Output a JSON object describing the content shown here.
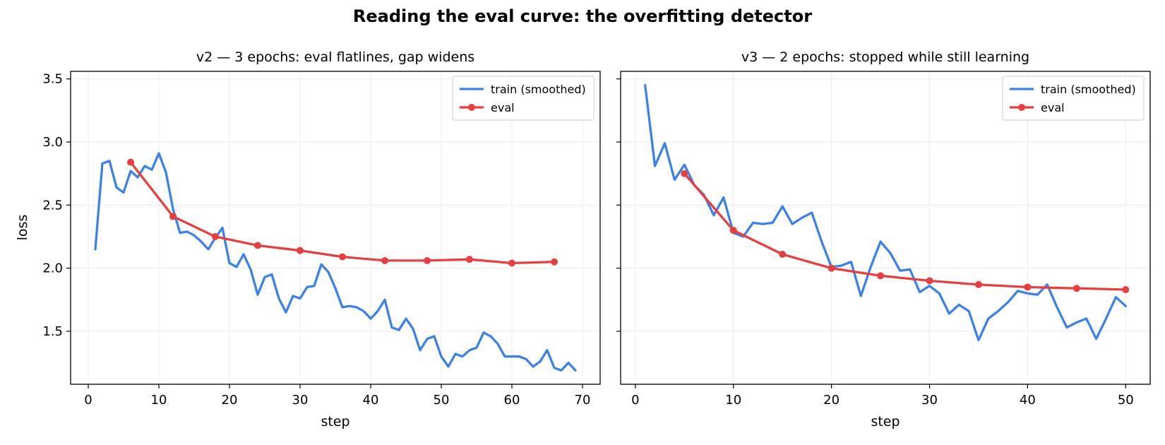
{
  "figure_title": "Reading the eval curve: the overfitting detector",
  "colors": {
    "train": "#3b82e8",
    "eval": "#e5403f",
    "grid": "#ebebeb",
    "axis": "#000000"
  },
  "chart_data": [
    {
      "type": "line",
      "title": "v2 — 3 epochs: eval flatlines, gap widens",
      "xlabel": "step",
      "ylabel": "loss",
      "xlim": [
        -2.5,
        72.5
      ],
      "ylim": [
        1.08,
        3.56
      ],
      "xticks": [
        0,
        10,
        20,
        30,
        40,
        50,
        60,
        70
      ],
      "xtick_labels": [
        "0",
        "10",
        "20",
        "30",
        "40",
        "50",
        "60",
        "70"
      ],
      "yticks": [
        1.5,
        2.0,
        2.5,
        3.0,
        3.5
      ],
      "ytick_labels": [
        "1.5",
        "2.0",
        "2.5",
        "3.0",
        "3.5"
      ],
      "grid": true,
      "legend": "top-right",
      "series": [
        {
          "name": "train (smoothed)",
          "x": [
            1,
            2,
            3,
            4,
            5,
            6,
            7,
            8,
            9,
            10,
            11,
            12,
            13,
            14,
            15,
            16,
            17,
            18,
            19,
            20,
            21,
            22,
            23,
            24,
            25,
            26,
            27,
            28,
            29,
            30,
            31,
            32,
            33,
            34,
            35,
            36,
            37,
            38,
            39,
            40,
            41,
            42,
            43,
            44,
            45,
            46,
            47,
            48,
            49,
            50,
            51,
            52,
            53,
            54,
            55,
            56,
            57,
            58,
            59,
            60,
            61,
            62,
            63,
            64,
            65,
            66,
            67,
            68,
            69
          ],
          "y": [
            2.15,
            2.83,
            2.85,
            2.64,
            2.6,
            2.77,
            2.72,
            2.81,
            2.78,
            2.91,
            2.76,
            2.47,
            2.28,
            2.29,
            2.26,
            2.21,
            2.15,
            2.24,
            2.32,
            2.04,
            2.01,
            2.11,
            1.99,
            1.79,
            1.93,
            1.95,
            1.76,
            1.65,
            1.78,
            1.76,
            1.85,
            1.86,
            2.03,
            1.97,
            1.84,
            1.69,
            1.7,
            1.69,
            1.66,
            1.6,
            1.66,
            1.75,
            1.53,
            1.51,
            1.6,
            1.52,
            1.35,
            1.44,
            1.46,
            1.3,
            1.22,
            1.32,
            1.3,
            1.35,
            1.37,
            1.49,
            1.46,
            1.4,
            1.3,
            1.3,
            1.3,
            1.28,
            1.22,
            1.26,
            1.35,
            1.21,
            1.19,
            1.25,
            1.19
          ]
        },
        {
          "name": "eval",
          "x": [
            6,
            12,
            18,
            24,
            30,
            36,
            42,
            48,
            54,
            60,
            66
          ],
          "y": [
            2.84,
            2.41,
            2.25,
            2.18,
            2.14,
            2.09,
            2.06,
            2.06,
            2.07,
            2.04,
            2.05
          ]
        }
      ]
    },
    {
      "type": "line",
      "title": "v3 — 2 epochs: stopped while still learning",
      "xlabel": "step",
      "ylabel": "",
      "xlim": [
        -1.5,
        52.5
      ],
      "ylim": [
        1.08,
        3.56
      ],
      "xticks": [
        0,
        10,
        20,
        30,
        40,
        50
      ],
      "xtick_labels": [
        "0",
        "10",
        "20",
        "30",
        "40",
        "50"
      ],
      "yticks": [
        1.5,
        2.0,
        2.5,
        3.0,
        3.5
      ],
      "ytick_labels": [],
      "grid": true,
      "legend": "top-right",
      "series": [
        {
          "name": "train (smoothed)",
          "x": [
            1,
            2,
            3,
            4,
            5,
            6,
            7,
            8,
            9,
            10,
            11,
            12,
            13,
            14,
            15,
            16,
            17,
            18,
            19,
            20,
            21,
            22,
            23,
            24,
            25,
            26,
            27,
            28,
            29,
            30,
            31,
            32,
            33,
            34,
            35,
            36,
            37,
            38,
            39,
            40,
            41,
            42,
            43,
            44,
            45,
            46,
            47,
            48,
            49,
            50
          ],
          "y": [
            3.45,
            2.81,
            2.99,
            2.7,
            2.82,
            2.66,
            2.58,
            2.42,
            2.56,
            2.28,
            2.25,
            2.36,
            2.35,
            2.36,
            2.49,
            2.35,
            2.4,
            2.44,
            2.21,
            2.01,
            2.02,
            2.05,
            1.78,
            2.01,
            2.21,
            2.12,
            1.98,
            1.99,
            1.81,
            1.86,
            1.8,
            1.64,
            1.71,
            1.66,
            1.43,
            1.6,
            1.66,
            1.73,
            1.82,
            1.8,
            1.79,
            1.87,
            1.69,
            1.53,
            1.57,
            1.6,
            1.44,
            1.6,
            1.77,
            1.7
          ]
        },
        {
          "name": "eval",
          "x": [
            5,
            10,
            15,
            20,
            25,
            30,
            35,
            40,
            45,
            50
          ],
          "y": [
            2.75,
            2.3,
            2.11,
            2.0,
            1.94,
            1.9,
            1.87,
            1.85,
            1.84,
            1.83
          ]
        }
      ]
    }
  ]
}
